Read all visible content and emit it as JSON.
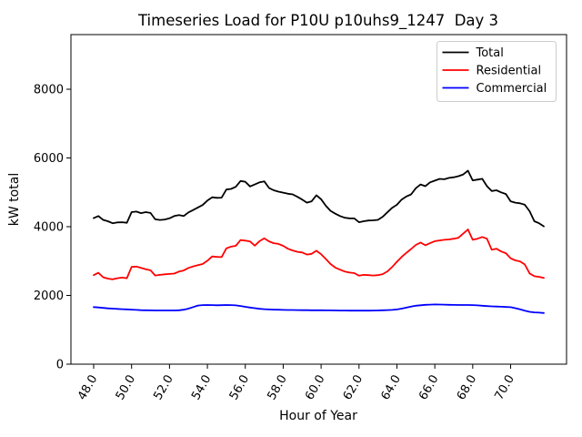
{
  "chart_data": {
    "type": "line",
    "title": "Timeseries Load for P10U p10uhs9_1247  Day 3",
    "xlabel": "Hour of Year",
    "ylabel": "kW total",
    "grid": false,
    "legend_position": "upper right",
    "xlim": [
      46.8,
      72.95
    ],
    "ylim": [
      0,
      9590
    ],
    "xtick_values": [
      48,
      50,
      52,
      54,
      56,
      58,
      60,
      62,
      64,
      66,
      68,
      70
    ],
    "xtick_labels": [
      "48.0",
      "50.0",
      "52.0",
      "54.0",
      "56.0",
      "58.0",
      "60.0",
      "62.0",
      "64.0",
      "66.0",
      "68.0",
      "70.0"
    ],
    "ytick_values": [
      0,
      2000,
      4000,
      6000,
      8000
    ],
    "ytick_labels": [
      "0",
      "2000",
      "4000",
      "6000",
      "8000"
    ],
    "x_hours": [
      48.0,
      48.25,
      48.5,
      48.75,
      49.0,
      49.25,
      49.5,
      49.75,
      50.0,
      50.25,
      50.5,
      50.75,
      51.0,
      51.25,
      51.5,
      51.75,
      52.0,
      52.25,
      52.5,
      52.75,
      53.0,
      53.25,
      53.5,
      53.75,
      54.0,
      54.25,
      54.5,
      54.75,
      55.0,
      55.25,
      55.5,
      55.75,
      56.0,
      56.25,
      56.5,
      56.75,
      57.0,
      57.25,
      57.5,
      57.75,
      58.0,
      58.25,
      58.5,
      58.75,
      59.0,
      59.25,
      59.5,
      59.75,
      60.0,
      60.25,
      60.5,
      60.75,
      61.0,
      61.25,
      61.5,
      61.75,
      62.0,
      62.25,
      62.5,
      62.75,
      63.0,
      63.25,
      63.5,
      63.75,
      64.0,
      64.25,
      64.5,
      64.75,
      65.0,
      65.25,
      65.5,
      65.75,
      66.0,
      66.25,
      66.5,
      66.75,
      67.0,
      67.25,
      67.5,
      67.75,
      68.0,
      68.25,
      68.5,
      68.75,
      69.0,
      69.25,
      69.5,
      69.75,
      70.0,
      70.25,
      70.5,
      70.75,
      71.0,
      71.25,
      71.5,
      71.75
    ],
    "series": [
      {
        "name": "Total",
        "color": "#000000",
        "values": [
          4250,
          4310,
          4200,
          4160,
          4100,
          4125,
          4130,
          4115,
          4425,
          4440,
          4395,
          4425,
          4400,
          4215,
          4195,
          4210,
          4245,
          4310,
          4340,
          4310,
          4415,
          4485,
          4560,
          4630,
          4760,
          4855,
          4840,
          4845,
          5080,
          5100,
          5160,
          5330,
          5310,
          5170,
          5230,
          5290,
          5320,
          5130,
          5060,
          5020,
          4990,
          4960,
          4940,
          4870,
          4790,
          4700,
          4740,
          4915,
          4800,
          4610,
          4460,
          4380,
          4310,
          4260,
          4245,
          4240,
          4130,
          4160,
          4180,
          4185,
          4200,
          4290,
          4420,
          4550,
          4640,
          4790,
          4880,
          4940,
          5120,
          5230,
          5180,
          5290,
          5340,
          5390,
          5380,
          5420,
          5440,
          5470,
          5520,
          5630,
          5350,
          5370,
          5395,
          5180,
          5040,
          5060,
          5000,
          4950,
          4740,
          4700,
          4680,
          4640,
          4450,
          4160,
          4100,
          4010
        ]
      },
      {
        "name": "Residential",
        "color": "#ff0000",
        "values": [
          2590,
          2660,
          2530,
          2490,
          2470,
          2500,
          2520,
          2500,
          2830,
          2840,
          2800,
          2760,
          2730,
          2580,
          2600,
          2615,
          2625,
          2635,
          2695,
          2725,
          2800,
          2845,
          2880,
          2915,
          3010,
          3135,
          3120,
          3115,
          3370,
          3420,
          3445,
          3610,
          3595,
          3570,
          3450,
          3580,
          3660,
          3575,
          3520,
          3500,
          3445,
          3360,
          3310,
          3270,
          3250,
          3190,
          3210,
          3300,
          3200,
          3060,
          2915,
          2810,
          2750,
          2695,
          2665,
          2650,
          2575,
          2600,
          2590,
          2580,
          2590,
          2620,
          2700,
          2830,
          2980,
          3120,
          3240,
          3350,
          3470,
          3540,
          3460,
          3520,
          3580,
          3600,
          3620,
          3630,
          3650,
          3680,
          3800,
          3920,
          3620,
          3650,
          3700,
          3650,
          3330,
          3360,
          3280,
          3230,
          3080,
          3020,
          2990,
          2900,
          2640,
          2560,
          2540,
          2510
        ]
      },
      {
        "name": "Commercial",
        "color": "#0000ff",
        "values": [
          1660,
          1650,
          1638,
          1625,
          1615,
          1608,
          1600,
          1595,
          1588,
          1580,
          1572,
          1568,
          1565,
          1564,
          1563,
          1563,
          1563,
          1564,
          1567,
          1585,
          1615,
          1662,
          1705,
          1718,
          1722,
          1719,
          1714,
          1716,
          1722,
          1720,
          1712,
          1694,
          1668,
          1648,
          1628,
          1610,
          1600,
          1592,
          1588,
          1584,
          1580,
          1577,
          1575,
          1573,
          1572,
          1570,
          1569,
          1568,
          1567,
          1566,
          1565,
          1563,
          1561,
          1560,
          1559,
          1558,
          1557,
          1557,
          1558,
          1560,
          1563,
          1567,
          1573,
          1580,
          1592,
          1615,
          1645,
          1675,
          1700,
          1715,
          1726,
          1733,
          1738,
          1736,
          1732,
          1728,
          1724,
          1722,
          1721,
          1721,
          1720,
          1712,
          1700,
          1690,
          1682,
          1676,
          1671,
          1665,
          1658,
          1630,
          1595,
          1555,
          1522,
          1508,
          1500,
          1488
        ]
      }
    ]
  }
}
